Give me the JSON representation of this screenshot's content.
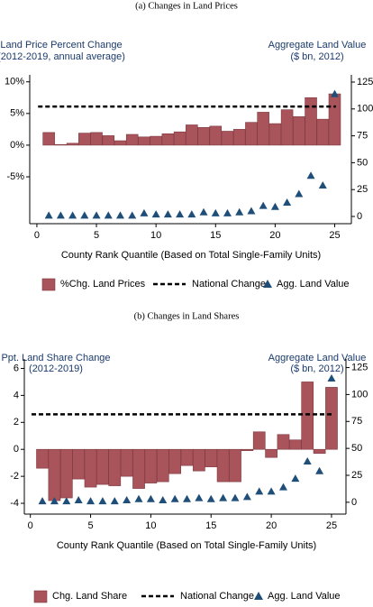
{
  "chart_data": [
    {
      "type": "bar",
      "caption": "(a) Changes in Land Prices",
      "ylabel": [
        "Land Price Percent Change",
        "(2012-2019, annual average)"
      ],
      "y2label": [
        "Aggregate Land Value",
        "($ bn, 2012)"
      ],
      "xlabel": "County Rank Quantile (Based on Total Single-Family Units)",
      "x": [
        1,
        2,
        3,
        4,
        5,
        6,
        7,
        8,
        9,
        10,
        11,
        12,
        13,
        14,
        15,
        16,
        17,
        18,
        19,
        20,
        21,
        22,
        23,
        24,
        25
      ],
      "xlim": [
        -0.6,
        26.4
      ],
      "xticks": [
        0,
        5,
        10,
        15,
        20,
        25
      ],
      "ylim": [
        -12.4,
        11.1
      ],
      "yticks": [
        {
          "value": -5,
          "label": "-5%"
        },
        {
          "value": 0,
          "label": "0%"
        },
        {
          "value": 5,
          "label": "5%"
        },
        {
          "value": 10,
          "label": "10%"
        }
      ],
      "y2lim": [
        -6.7,
        131.7
      ],
      "y2ticks": [
        0,
        25,
        50,
        75,
        100,
        125
      ],
      "legend": "bottom",
      "series": [
        {
          "name": "%Chg. Land Prices",
          "type": "bar",
          "color": "#a9535b",
          "values": [
            2.0,
            0.1,
            0.3,
            1.9,
            2.0,
            1.5,
            0.7,
            1.7,
            1.3,
            1.4,
            1.8,
            2.1,
            3.2,
            2.8,
            3.0,
            2.2,
            2.5,
            3.6,
            5.2,
            3.4,
            5.6,
            4.5,
            7.5,
            4.1,
            8.1
          ]
        },
        {
          "name": "National Change",
          "type": "line",
          "color": "#000000",
          "x": [
            0.1,
            25.1
          ],
          "values": [
            6.1,
            6.1
          ]
        },
        {
          "name": "Agg. Land Value",
          "type": "scatter",
          "axis": "y2",
          "color": "#1f4e79",
          "values": [
            1,
            1,
            1,
            1,
            1,
            1,
            1,
            1,
            3,
            2,
            2,
            2,
            2,
            4,
            3,
            3,
            4,
            5,
            10,
            9,
            13,
            21,
            38,
            29,
            114
          ]
        }
      ]
    },
    {
      "type": "bar",
      "caption": "(b) Changes in Land Shares",
      "ylabel": [
        "Ppt. Land Share Change",
        "(2012-2019)"
      ],
      "y2label": [
        "Aggregate Land Value",
        "($ bn, 2012)"
      ],
      "xlabel": "County Rank Quantile (Based on Total Single-Family Units)",
      "x": [
        1,
        2,
        3,
        4,
        5,
        6,
        7,
        8,
        9,
        10,
        11,
        12,
        13,
        14,
        15,
        16,
        17,
        18,
        19,
        20,
        21,
        22,
        23,
        24,
        25
      ],
      "xlim": [
        -0.5,
        26.2
      ],
      "xticks": [
        0,
        5,
        10,
        15,
        20,
        25
      ],
      "ylim": [
        -4.8,
        6.7
      ],
      "yticks": [
        -4,
        -2,
        0,
        2,
        4,
        6
      ],
      "y2lim": [
        -11,
        133
      ],
      "y2ticks": [
        0,
        25,
        50,
        75,
        100,
        125
      ],
      "legend": "bottom",
      "series": [
        {
          "name": "Chg. Land Share",
          "type": "bar",
          "color": "#a9535b",
          "values": [
            -1.4,
            -3.8,
            -3.6,
            -2.2,
            -2.8,
            -2.6,
            -2.7,
            -2.0,
            -2.9,
            -2.5,
            -2.4,
            -1.8,
            -1.2,
            -1.6,
            -1.3,
            -2.4,
            -2.4,
            -0.1,
            1.3,
            -0.6,
            1.1,
            0.7,
            5.0,
            -0.3,
            4.6
          ]
        },
        {
          "name": "National Change",
          "type": "line",
          "color": "#000000",
          "x": [
            0.1,
            25.1
          ],
          "values": [
            2.6,
            2.6
          ]
        },
        {
          "name": "Agg. Land Value",
          "type": "scatter",
          "axis": "y2",
          "color": "#1f4e79",
          "values": [
            1,
            1,
            1,
            2,
            1,
            1,
            1,
            2,
            3,
            3,
            2,
            3,
            3,
            4,
            3,
            4,
            4,
            5,
            10,
            10,
            14,
            22,
            38,
            29,
            115
          ]
        }
      ]
    }
  ]
}
